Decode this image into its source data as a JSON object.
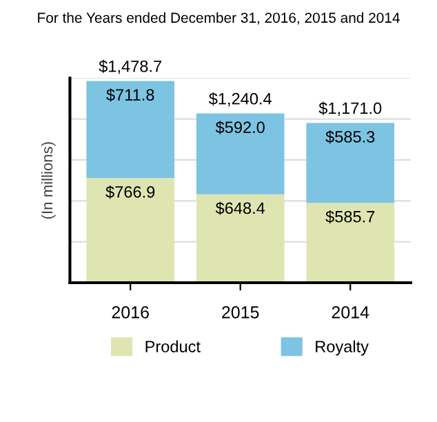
{
  "chart_data": {
    "type": "bar",
    "title": "For the Years ended December 31, 2016, 2015 and 2014",
    "ylabel": "(In millions)",
    "stacked": true,
    "categories": [
      "2016",
      "2015",
      "2014"
    ],
    "series": [
      {
        "name": "Product",
        "color": "#dfe5b1",
        "values": [
          766.9,
          648.4,
          585.7
        ],
        "value_labels": [
          "$766.9",
          "$648.4",
          "$585.7"
        ]
      },
      {
        "name": "Royalty",
        "color": "#7cc4e2",
        "values": [
          711.8,
          592.0,
          585.3
        ],
        "value_labels": [
          "$711.8",
          "$592.0",
          "$585.3"
        ]
      }
    ],
    "totals": [
      "$1,478.7",
      "$1,240.4",
      "$1,171.0"
    ],
    "ylim": [
      0,
      1500
    ],
    "yticks": [
      {
        "value": 0,
        "label": null
      },
      {
        "value": 300,
        "label": null
      },
      {
        "value": 600,
        "label": null
      },
      {
        "value": 900,
        "label": null
      },
      {
        "value": 1200,
        "label": null
      },
      {
        "value": 1500,
        "label": null
      }
    ],
    "grid": "y",
    "legend": "bottom"
  }
}
